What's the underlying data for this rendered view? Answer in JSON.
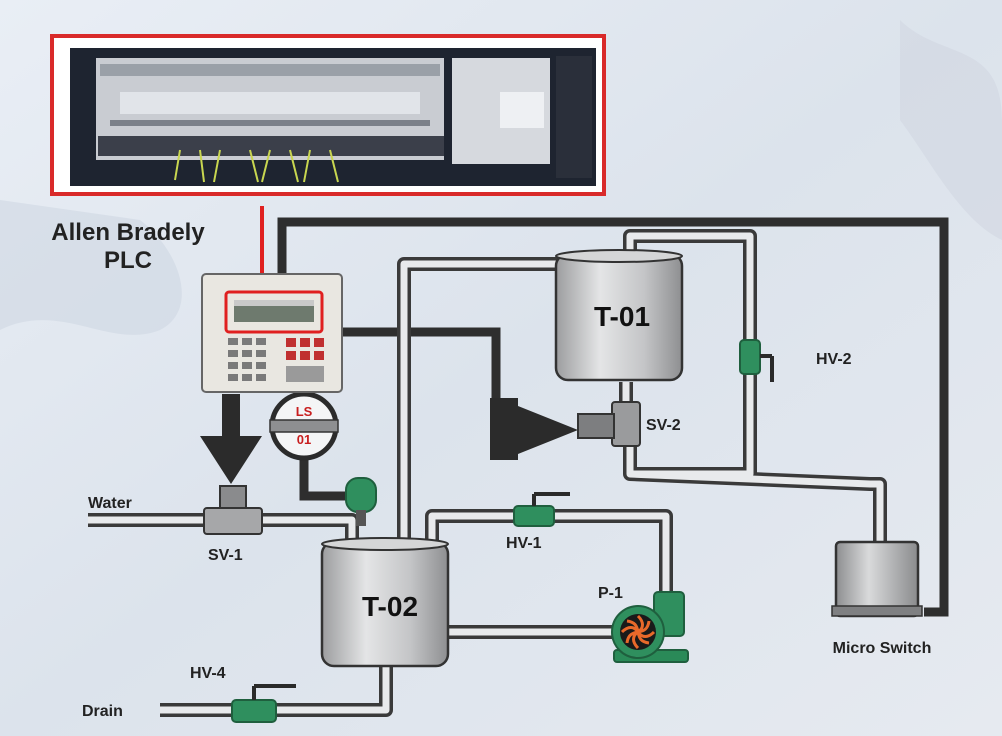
{
  "plc": {
    "title_line1": "Allen Bradely",
    "title_line2": "PLC"
  },
  "sensors": {
    "level_switch_line1": "LS",
    "level_switch_line2": "01"
  },
  "tanks": {
    "t01": "T-01",
    "t02": "T-02"
  },
  "valves": {
    "sv1": "SV-1",
    "sv2": "SV-2",
    "hv1": "HV-1",
    "hv2": "HV-2",
    "hv4": "HV-4"
  },
  "equipment": {
    "pump": "P-1",
    "micro_switch": "Micro Switch"
  },
  "lines": {
    "water": "Water",
    "drain": "Drain"
  },
  "colors": {
    "background": "#dfe5ee",
    "pipe_fill": "#e8eaec",
    "pipe_outline": "#3a3a3a",
    "signal_line": "#2e2e2e",
    "valve_green": "#2f8f5e",
    "plc_frame_red": "#d92a2a",
    "tank_grey": "#c9cacb"
  }
}
